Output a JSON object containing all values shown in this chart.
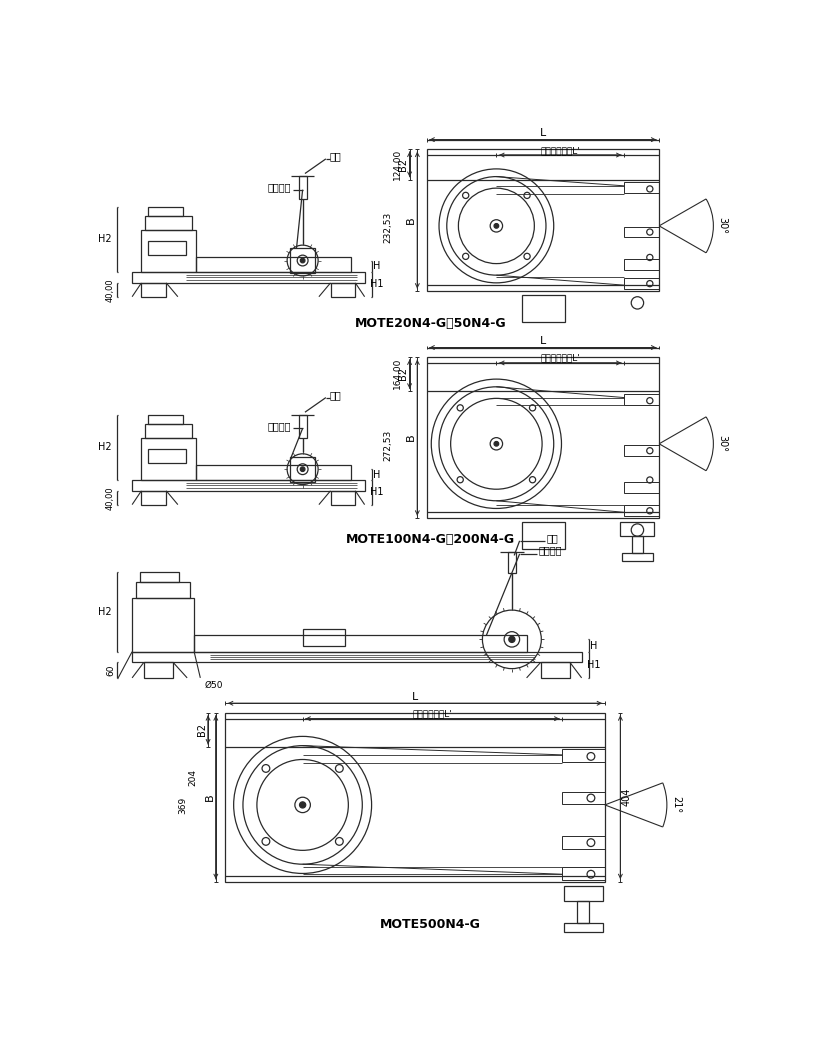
{
  "bg_color": "#ffffff",
  "lc": "#2a2a2a",
  "section1_label": "MOTE20N4-G、50N4-G",
  "section2_label": "MOTE100N4-G、200N4-G",
  "section3_label": "MOTE500N4-G",
  "dim_L_eff": "最大有效长度L'",
  "label_yaoGan": "摇杆",
  "label_zhuanpan": "转盘手柄",
  "dim1_B": "232,53",
  "dim1_B2": "124,00",
  "dim2_B": "272,53",
  "dim2_B2": "164,00",
  "dim3_404": "404",
  "dim3_B": "369",
  "dim3_B2": "204",
  "dim_40": "40,00",
  "dim_60": "60",
  "dim_phi50": "Ø50"
}
